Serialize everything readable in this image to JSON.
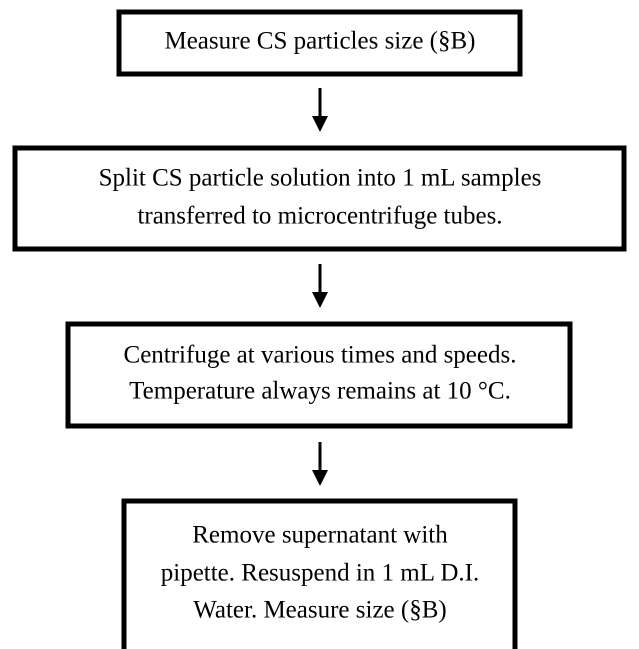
{
  "nodes": [
    {
      "lines": [
        "Measure CS particles size (§B)"
      ]
    },
    {
      "lines": [
        "Split CS particle solution into 1 mL samples",
        "transferred to microcentrifuge tubes."
      ]
    },
    {
      "lines": [
        "Centrifuge at various times and speeds.",
        "Temperature always remains at 10 °C."
      ]
    },
    {
      "lines": [
        "Remove supernatant with",
        "pipette. Resuspend in 1 mL D.I.",
        "Water. Measure size (§B)"
      ]
    }
  ]
}
